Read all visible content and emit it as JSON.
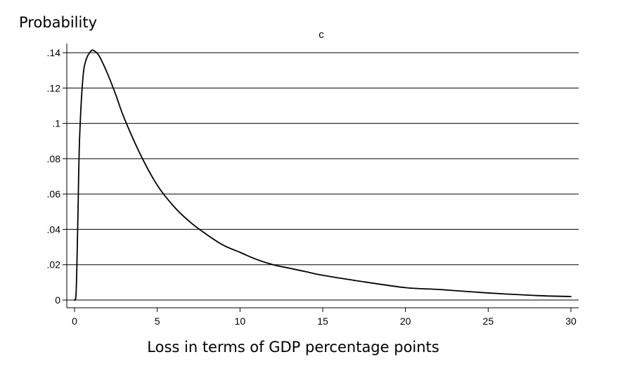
{
  "chart_data": {
    "type": "line",
    "title": "c",
    "ylabel": "Probability",
    "xlabel": "Loss in terms of GDP percentage points",
    "xlim": [
      0,
      30
    ],
    "ylim": [
      0,
      0.14
    ],
    "x_ticks": [
      0,
      5,
      10,
      15,
      20,
      25,
      30
    ],
    "x_tick_labels": [
      "0",
      "5",
      "10",
      "15",
      "20",
      "25",
      "30"
    ],
    "y_ticks": [
      0,
      0.02,
      0.04,
      0.06,
      0.08,
      0.1,
      0.12,
      0.14
    ],
    "y_tick_labels": [
      "0",
      ".02",
      ".04",
      ".06",
      ".08",
      ".1",
      ".12",
      ".14"
    ],
    "grid": "horizontal",
    "series": [
      {
        "color": "#000000",
        "x": [
          0,
          0.1,
          0.2,
          0.3,
          0.5,
          0.7,
          1.0,
          1.2,
          1.5,
          2.0,
          2.5,
          3.0,
          4.0,
          5.0,
          6.0,
          7.0,
          8.0,
          9.0,
          10.0,
          11.0,
          12.0,
          13.0,
          14.0,
          15.0,
          17.0,
          20.0,
          22.0,
          25.0,
          28.0,
          30.0
        ],
        "y": [
          0,
          0.005,
          0.045,
          0.09,
          0.125,
          0.136,
          0.141,
          0.141,
          0.138,
          0.128,
          0.116,
          0.103,
          0.082,
          0.065,
          0.053,
          0.044,
          0.037,
          0.031,
          0.027,
          0.023,
          0.02,
          0.018,
          0.016,
          0.014,
          0.011,
          0.007,
          0.006,
          0.004,
          0.0025,
          0.002
        ]
      }
    ]
  }
}
